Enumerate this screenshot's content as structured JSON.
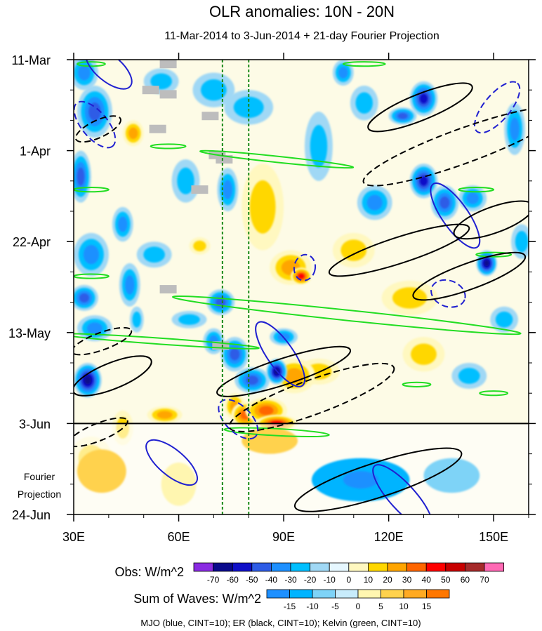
{
  "chart_data": {
    "type": "heatmap",
    "title": "OLR anomalies: 10N - 20N",
    "subtitle": "11-Mar-2014 to 3-Jun-2014 + 21-day Fourier Projection",
    "xlim": [
      30,
      160
    ],
    "x_ticks": [
      {
        "value": 30,
        "label": "30E"
      },
      {
        "value": 60,
        "label": "60E"
      },
      {
        "value": 90,
        "label": "90E"
      },
      {
        "value": 120,
        "label": "120E"
      },
      {
        "value": 150,
        "label": "150E"
      }
    ],
    "time_range_days": [
      0,
      105
    ],
    "y_ticks": [
      {
        "day": 0,
        "label": "11-Mar"
      },
      {
        "day": 21,
        "label": "1-Apr"
      },
      {
        "day": 42,
        "label": "22-Apr"
      },
      {
        "day": 63,
        "label": "13-May"
      },
      {
        "day": 84,
        "label": "3-Jun"
      },
      {
        "day": 105,
        "label": "24-Jun"
      }
    ],
    "projection_start_day": 84,
    "projection_label": [
      "Fourier",
      "Projection"
    ],
    "reference_longitudes": [
      72.5,
      80
    ],
    "obs_colorbar": {
      "label": "Obs: W/m^2",
      "levels": [
        "-70",
        "-60",
        "-50",
        "-40",
        "-30",
        "-20",
        "-10",
        "0",
        "10",
        "20",
        "30",
        "40",
        "50",
        "60",
        "70"
      ],
      "colors": [
        "#8a2be2",
        "#0a0a8c",
        "#1010c8",
        "#2e5ce6",
        "#1e90ff",
        "#00bfff",
        "#a0d8f5",
        "#e6f7ff",
        "#fff8c0",
        "#ffd700",
        "#ffa500",
        "#ff6600",
        "#ff0000",
        "#c80000",
        "#a52a2a",
        "#ff69b4"
      ]
    },
    "waves_colorbar": {
      "label": "Sum of Waves: W/m^2",
      "levels": [
        "-15",
        "-10",
        "-5",
        "0",
        "5",
        "10",
        "15"
      ],
      "colors": [
        "#1e90ff",
        "#00b4ff",
        "#7ed3f7",
        "#c8ecfb",
        "#fff6b0",
        "#ffd24d",
        "#ffaa22",
        "#ff7700"
      ]
    },
    "footer": "MJO (blue, CINT=10); ER (black, CINT=10); Kelvin (green, CINT=10)",
    "blobs": [
      {
        "lon": 33,
        "day": 3,
        "rx": 4,
        "ry": 4,
        "level": -3
      },
      {
        "lon": 36,
        "day": 12,
        "rx": 5,
        "ry": 6,
        "level": -4
      },
      {
        "lon": 32,
        "day": 27,
        "rx": 3,
        "ry": 6,
        "level": -4
      },
      {
        "lon": 35,
        "day": 45,
        "rx": 5,
        "ry": 5,
        "level": -3
      },
      {
        "lon": 33,
        "day": 55,
        "rx": 4,
        "ry": 3,
        "level": -4
      },
      {
        "lon": 36,
        "day": 62,
        "rx": 5,
        "ry": 3,
        "level": -3
      },
      {
        "lon": 34,
        "day": 74,
        "rx": 4,
        "ry": 4,
        "level": -6
      },
      {
        "lon": 44,
        "day": 38,
        "rx": 3,
        "ry": 4,
        "level": -3
      },
      {
        "lon": 46,
        "day": 52,
        "rx": 3,
        "ry": 5,
        "level": -3
      },
      {
        "lon": 47,
        "day": 17,
        "rx": 3,
        "ry": 3,
        "level": 3
      },
      {
        "lon": 48,
        "day": 60,
        "rx": 2,
        "ry": 3,
        "level": -2
      },
      {
        "lon": 44,
        "day": 85,
        "rx": 3,
        "ry": 4,
        "level": 2
      },
      {
        "lon": 35,
        "day": 92,
        "rx": 6,
        "ry": 5,
        "level": 2
      },
      {
        "lon": 56,
        "day": 82,
        "rx": 5,
        "ry": 2,
        "level": 3
      },
      {
        "lon": 63,
        "day": 60,
        "rx": 5,
        "ry": 2,
        "level": -2
      },
      {
        "lon": 55,
        "day": 5,
        "rx": 5,
        "ry": 3,
        "level": -2
      },
      {
        "lon": 70,
        "day": 7,
        "rx": 6,
        "ry": 4,
        "level": -2
      },
      {
        "lon": 80,
        "day": 11,
        "rx": 7,
        "ry": 4,
        "level": -2
      },
      {
        "lon": 74,
        "day": 30,
        "rx": 3,
        "ry": 5,
        "level": -3
      },
      {
        "lon": 72,
        "day": 56,
        "rx": 4,
        "ry": 3,
        "level": -4
      },
      {
        "lon": 76,
        "day": 68,
        "rx": 4,
        "ry": 4,
        "level": -4
      },
      {
        "lon": 88,
        "day": 72,
        "rx": 3,
        "ry": 3,
        "level": -6
      },
      {
        "lon": 81,
        "day": 74,
        "rx": 5,
        "ry": 3,
        "level": -4
      },
      {
        "lon": 70,
        "day": 65,
        "rx": 3,
        "ry": 3,
        "level": -3
      },
      {
        "lon": 76,
        "day": 80,
        "rx": 3,
        "ry": 3,
        "level": 3
      },
      {
        "lon": 79,
        "day": 82,
        "rx": 4,
        "ry": 3,
        "level": 4
      },
      {
        "lon": 85,
        "day": 81,
        "rx": 6,
        "ry": 3,
        "level": 4
      },
      {
        "lon": 93,
        "day": 73,
        "rx": 6,
        "ry": 4,
        "level": 3
      },
      {
        "lon": 100,
        "day": 72,
        "rx": 6,
        "ry": 3,
        "level": 2
      },
      {
        "lon": 92,
        "day": 48,
        "rx": 6,
        "ry": 4,
        "level": 3
      },
      {
        "lon": 95,
        "day": 50,
        "rx": 3,
        "ry": 2,
        "level": 5
      },
      {
        "lon": 84,
        "day": 34,
        "rx": 6,
        "ry": 10,
        "level": 2
      },
      {
        "lon": 100,
        "day": 20,
        "rx": 4,
        "ry": 8,
        "level": -2
      },
      {
        "lon": 107,
        "day": 3,
        "rx": 3,
        "ry": 3,
        "level": -3
      },
      {
        "lon": 113,
        "day": 10,
        "rx": 4,
        "ry": 4,
        "level": -2
      },
      {
        "lon": 110,
        "day": 44,
        "rx": 6,
        "ry": 4,
        "level": 2
      },
      {
        "lon": 116,
        "day": 33,
        "rx": 5,
        "ry": 4,
        "level": -3
      },
      {
        "lon": 130,
        "day": 9,
        "rx": 4,
        "ry": 4,
        "level": -5
      },
      {
        "lon": 124,
        "day": 13,
        "rx": 4,
        "ry": 2,
        "level": -4
      },
      {
        "lon": 130,
        "day": 28,
        "rx": 4,
        "ry": 4,
        "level": -5
      },
      {
        "lon": 136,
        "day": 33,
        "rx": 4,
        "ry": 4,
        "level": -4
      },
      {
        "lon": 144,
        "day": 32,
        "rx": 4,
        "ry": 3,
        "level": -3
      },
      {
        "lon": 148,
        "day": 47,
        "rx": 3,
        "ry": 3,
        "level": -6
      },
      {
        "lon": 153,
        "day": 60,
        "rx": 4,
        "ry": 3,
        "level": -2
      },
      {
        "lon": 126,
        "day": 55,
        "rx": 8,
        "ry": 4,
        "level": 2
      },
      {
        "lon": 130,
        "day": 68,
        "rx": 6,
        "ry": 4,
        "level": 2
      },
      {
        "lon": 143,
        "day": 73,
        "rx": 5,
        "ry": 3,
        "level": -2
      },
      {
        "lon": 156,
        "day": 16,
        "rx": 3,
        "ry": 6,
        "level": -3
      },
      {
        "lon": 158,
        "day": 42,
        "rx": 3,
        "ry": 4,
        "level": -2
      },
      {
        "lon": 90,
        "day": 64,
        "rx": 4,
        "ry": 2,
        "level": -3
      },
      {
        "lon": 62,
        "day": 28,
        "rx": 4,
        "ry": 5,
        "level": -2
      },
      {
        "lon": 53,
        "day": 45,
        "rx": 5,
        "ry": 3,
        "level": -2
      },
      {
        "lon": 88,
        "day": 84,
        "rx": 6,
        "ry": 2,
        "level": 5
      },
      {
        "lon": 66,
        "day": 43,
        "rx": 3,
        "ry": 2,
        "level": 2
      }
    ],
    "wave_blobs": [
      {
        "lon": 112,
        "day": 97,
        "rx": 14,
        "ry": 5,
        "level": -2
      },
      {
        "lon": 112,
        "day": 97,
        "rx": 5,
        "ry": 2,
        "level": -3
      },
      {
        "lon": 138,
        "day": 96,
        "rx": 8,
        "ry": 4,
        "level": -1
      },
      {
        "lon": 38,
        "day": 95,
        "rx": 7,
        "ry": 5,
        "level": 2
      },
      {
        "lon": 60,
        "day": 98,
        "rx": 5,
        "ry": 5,
        "level": 1
      },
      {
        "lon": 86,
        "day": 88,
        "rx": 8,
        "ry": 3,
        "level": 2
      }
    ],
    "mjo_contours": [
      {
        "lon": 40,
        "day": 2,
        "rx": 8,
        "ry": 3,
        "angle": 40,
        "dash": false
      },
      {
        "lon": 36,
        "day": 15,
        "rx": 8,
        "ry": 3,
        "angle": 50,
        "dash": true
      },
      {
        "lon": 139,
        "day": 36,
        "rx": 11,
        "ry": 3,
        "angle": 55,
        "dash": false
      },
      {
        "lon": 151,
        "day": 11,
        "rx": 9,
        "ry": 3,
        "angle": -50,
        "dash": true
      },
      {
        "lon": 89,
        "day": 68,
        "rx": 11,
        "ry": 3,
        "angle": 55,
        "dash": false
      },
      {
        "lon": 77,
        "day": 83,
        "rx": 7,
        "ry": 3,
        "angle": 45,
        "dash": true
      },
      {
        "lon": 58,
        "day": 93,
        "rx": 9,
        "ry": 3,
        "angle": 40,
        "dash": false
      },
      {
        "lon": 124,
        "day": 101,
        "rx": 12,
        "ry": 3,
        "angle": 48,
        "dash": false
      },
      {
        "lon": 137,
        "day": 54,
        "rx": 5,
        "ry": 3,
        "angle": 20,
        "dash": true
      },
      {
        "lon": 96,
        "day": 48,
        "rx": 3,
        "ry": 3,
        "angle": 10,
        "dash": true
      }
    ],
    "er_contours": [
      {
        "lon": 129,
        "day": 11,
        "rx": 16,
        "ry": 3,
        "angle": -22,
        "dash": false
      },
      {
        "lon": 141,
        "day": 20,
        "rx": 30,
        "ry": 4,
        "angle": -20,
        "dash": true
      },
      {
        "lon": 123,
        "day": 44,
        "rx": 21,
        "ry": 3,
        "angle": -18,
        "dash": false
      },
      {
        "lon": 143,
        "day": 50,
        "rx": 17,
        "ry": 3,
        "angle": -20,
        "dash": false
      },
      {
        "lon": 90,
        "day": 72,
        "rx": 20,
        "ry": 3,
        "angle": -18,
        "dash": false
      },
      {
        "lon": 98,
        "day": 78,
        "rx": 25,
        "ry": 4,
        "angle": -20,
        "dash": true
      },
      {
        "lon": 41,
        "day": 73,
        "rx": 12,
        "ry": 3,
        "angle": -22,
        "dash": false
      },
      {
        "lon": 38,
        "day": 65,
        "rx": 9,
        "ry": 2,
        "angle": -20,
        "dash": true
      },
      {
        "lon": 37,
        "day": 86,
        "rx": 9,
        "ry": 2,
        "angle": -22,
        "dash": true
      },
      {
        "lon": 117,
        "day": 97,
        "rx": 25,
        "ry": 4,
        "angle": -18,
        "dash": false
      },
      {
        "lon": 150,
        "day": 37,
        "rx": 12,
        "ry": 3,
        "angle": -20,
        "dash": false
      },
      {
        "lon": 37,
        "day": 16,
        "rx": 7,
        "ry": 2,
        "angle": -25,
        "dash": true
      }
    ],
    "kelvin_contours": [
      {
        "lon": 88,
        "day": 23,
        "rx": 22,
        "ry": 0.7,
        "angle": 6
      },
      {
        "lon": 108,
        "day": 59,
        "rx": 50,
        "ry": 1.2,
        "angle": 6
      },
      {
        "lon": 55,
        "day": 65,
        "rx": 28,
        "ry": 0.7,
        "angle": 4
      },
      {
        "lon": 35,
        "day": 30,
        "rx": 5,
        "ry": 0.5,
        "angle": 0
      },
      {
        "lon": 35,
        "day": 50,
        "rx": 5,
        "ry": 0.5,
        "angle": 0
      },
      {
        "lon": 57,
        "day": 20,
        "rx": 5,
        "ry": 0.5,
        "angle": 0
      },
      {
        "lon": 88,
        "day": 86,
        "rx": 15,
        "ry": 0.8,
        "angle": 3
      },
      {
        "lon": 150,
        "day": 45,
        "rx": 5,
        "ry": 0.5,
        "angle": 0
      },
      {
        "lon": 145,
        "day": 30,
        "rx": 5,
        "ry": 0.5,
        "angle": 0
      },
      {
        "lon": 128,
        "day": 75,
        "rx": 4,
        "ry": 0.5,
        "angle": 0
      },
      {
        "lon": 113,
        "day": 1,
        "rx": 6,
        "ry": 0.5,
        "angle": 0
      },
      {
        "lon": 35,
        "day": 1,
        "rx": 4,
        "ry": 0.5,
        "angle": 0
      },
      {
        "lon": 150,
        "day": 77,
        "rx": 4,
        "ry": 0.5,
        "angle": 0
      }
    ],
    "missing_patches": [
      {
        "lon": 52,
        "day": 7
      },
      {
        "lon": 57,
        "day": 8
      },
      {
        "lon": 54,
        "day": 16
      },
      {
        "lon": 69,
        "day": 13
      },
      {
        "lon": 71,
        "day": 22
      },
      {
        "lon": 73,
        "day": 23
      },
      {
        "lon": 66,
        "day": 30
      },
      {
        "lon": 57,
        "day": 53
      },
      {
        "lon": 72,
        "day": 66
      },
      {
        "lon": 57,
        "day": 1
      }
    ]
  }
}
